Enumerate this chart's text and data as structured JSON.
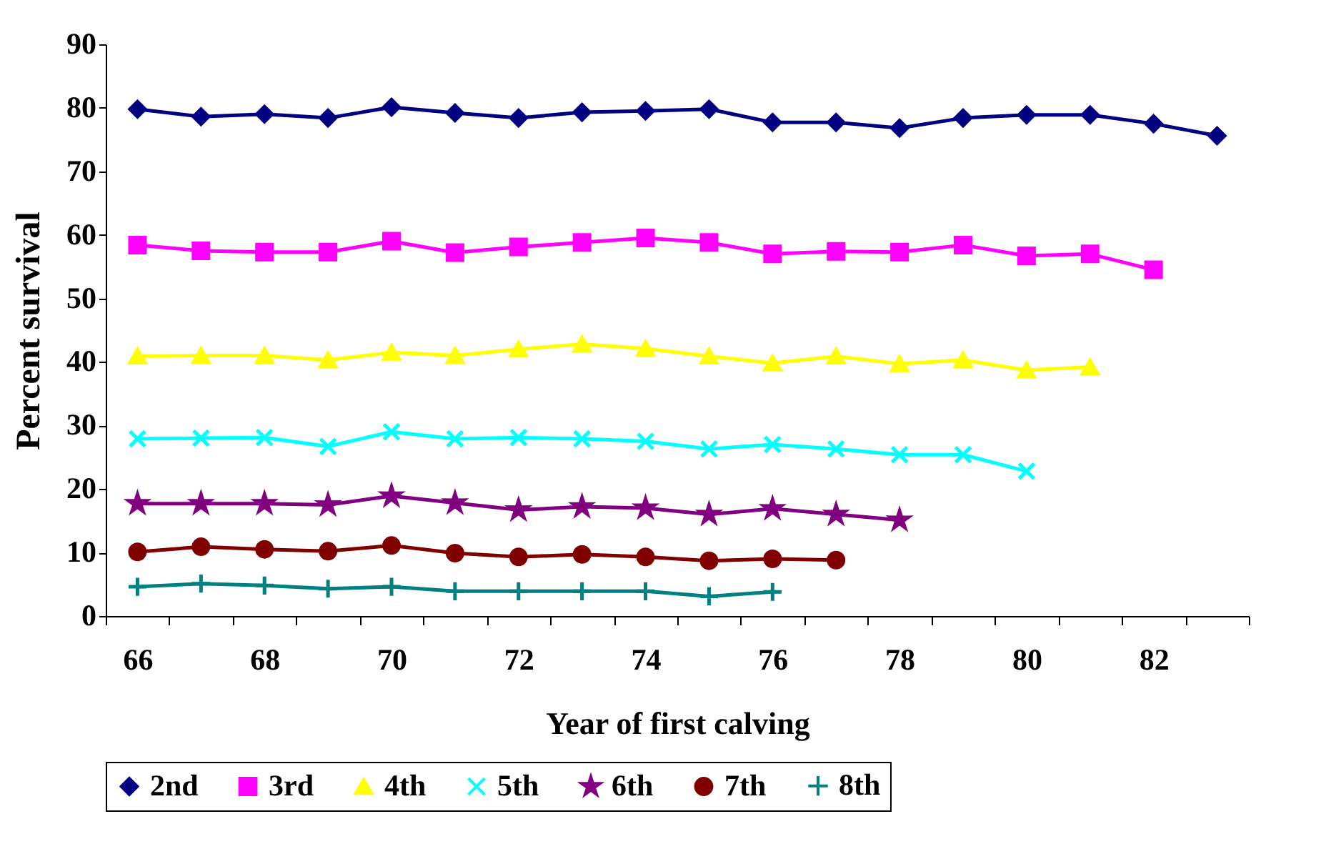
{
  "chart_data": {
    "type": "line",
    "xlabel": "Year of first calving",
    "ylabel": "Percent survival",
    "categories": [
      "66",
      null,
      "68",
      null,
      "70",
      null,
      "72",
      null,
      "74",
      null,
      "76",
      null,
      "78",
      null,
      "80",
      null,
      "82",
      null
    ],
    "ylim": [
      0,
      90
    ],
    "yticks": [
      0,
      10,
      20,
      30,
      40,
      50,
      60,
      70,
      80,
      90
    ],
    "legend": "bottom",
    "grid": false,
    "line_style": "solid",
    "series": [
      {
        "name": "2nd",
        "color": "#000080",
        "marker": "diamond",
        "values": [
          79.8,
          78.6,
          79.0,
          78.4,
          80.1,
          79.2,
          78.4,
          79.3,
          79.5,
          79.8,
          77.7,
          77.7,
          76.8,
          78.4,
          78.9,
          78.9,
          77.5,
          75.6
        ]
      },
      {
        "name": "3rd",
        "color": "#ff00ff",
        "marker": "square",
        "values": [
          58.4,
          57.5,
          57.3,
          57.3,
          59.0,
          57.2,
          58.1,
          58.8,
          59.5,
          58.8,
          57.0,
          57.4,
          57.3,
          58.4,
          56.7,
          57.0,
          54.5,
          null
        ]
      },
      {
        "name": "4th",
        "color": "#ffff00",
        "marker": "triangle",
        "values": [
          40.9,
          41.0,
          41.0,
          40.3,
          41.5,
          41.0,
          42.0,
          42.8,
          42.1,
          40.9,
          39.8,
          40.9,
          39.7,
          40.3,
          38.7,
          39.2,
          null,
          null
        ]
      },
      {
        "name": "5th",
        "color": "#00ffff",
        "marker": "x",
        "values": [
          27.9,
          28.0,
          28.1,
          26.7,
          29.0,
          27.9,
          28.1,
          27.9,
          27.5,
          26.3,
          27.0,
          26.3,
          25.4,
          25.4,
          22.8,
          null,
          null,
          null
        ]
      },
      {
        "name": "6th",
        "color": "#800080",
        "marker": "star",
        "values": [
          17.7,
          17.7,
          17.7,
          17.5,
          18.9,
          17.8,
          16.7,
          17.2,
          17.0,
          16.0,
          16.9,
          16.0,
          15.1,
          null,
          null,
          null,
          null,
          null
        ]
      },
      {
        "name": "7th",
        "color": "#800000",
        "marker": "circle",
        "values": [
          10.1,
          10.9,
          10.5,
          10.2,
          11.1,
          9.9,
          9.3,
          9.7,
          9.3,
          8.7,
          9.0,
          8.8,
          null,
          null,
          null,
          null,
          null,
          null
        ]
      },
      {
        "name": "8th",
        "color": "#008080",
        "marker": "cross",
        "values": [
          4.6,
          5.1,
          4.8,
          4.3,
          4.6,
          3.9,
          3.9,
          3.9,
          3.9,
          3.1,
          3.8,
          null,
          null,
          null,
          null,
          null,
          null,
          null
        ]
      }
    ]
  }
}
